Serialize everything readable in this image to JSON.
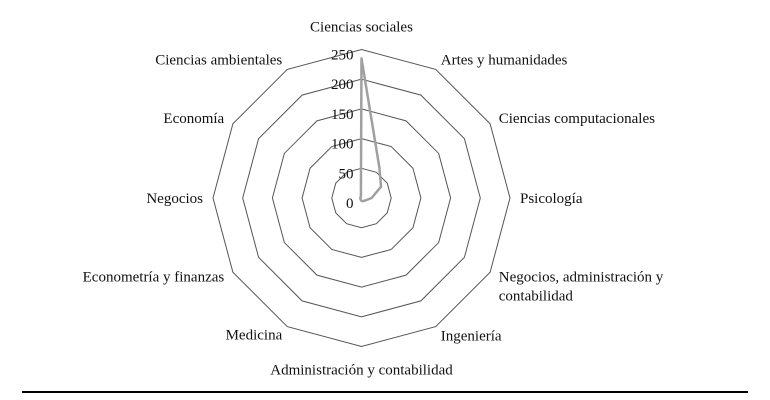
{
  "chart_data": {
    "type": "radar",
    "categories": [
      "Ciencias sociales",
      "Artes y humanidades",
      "Ciencias computacionales",
      "Psicología",
      "Negocios, administración y contabilidad",
      "Ingeniería",
      "Administración y contabilidad",
      "Medicina",
      "Econometría y finanzas",
      "Negocios",
      "Economía",
      "Ciencias ambientales"
    ],
    "values": [
      235,
      60,
      38,
      17,
      8,
      6,
      5,
      3,
      2,
      2,
      2,
      2
    ],
    "rlim": [
      0,
      250
    ],
    "ticks": [
      "0",
      "50",
      "100",
      "150",
      "200",
      "250"
    ],
    "grid": true,
    "legend": "none",
    "series_color": "#a0a0a0",
    "grid_color": "#555555"
  }
}
